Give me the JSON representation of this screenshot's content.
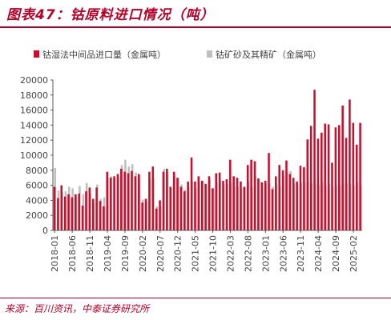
{
  "figure": {
    "title": "图表47：钴原料进口情况（吨）",
    "source": "来源：百川资讯，中泰证券研究所"
  },
  "colors": {
    "accent": "#b5002a",
    "series_main": "#c8102e",
    "series_secondary": "#bfbfbf",
    "axis": "#595959"
  },
  "chart_data": {
    "type": "bar",
    "x": [
      "2018-01",
      "2018-02",
      "2018-03",
      "2018-04",
      "2018-05",
      "2018-06",
      "2018-07",
      "2018-08",
      "2018-09",
      "2018-10",
      "2018-11",
      "2018-12",
      "2019-01",
      "2019-02",
      "2019-03",
      "2019-04",
      "2019-05",
      "2019-06",
      "2019-07",
      "2019-08",
      "2019-09",
      "2019-10",
      "2019-11",
      "2019-12",
      "2020-01",
      "2020-02",
      "2020-03",
      "2020-04",
      "2020-05",
      "2020-06",
      "2020-07",
      "2020-08",
      "2020-09",
      "2020-10",
      "2020-11",
      "2020-12",
      "2021-01",
      "2021-02",
      "2021-03",
      "2021-04",
      "2021-05",
      "2021-06",
      "2021-07",
      "2021-08",
      "2021-09",
      "2021-10",
      "2021-11",
      "2021-12",
      "2022-01",
      "2022-02",
      "2022-03",
      "2022-04",
      "2022-05",
      "2022-06",
      "2022-07",
      "2022-08",
      "2022-09",
      "2022-10",
      "2022-11",
      "2022-12",
      "2023-01",
      "2023-02",
      "2023-03",
      "2023-04",
      "2023-05",
      "2023-06",
      "2023-07",
      "2023-08",
      "2023-09",
      "2023-10",
      "2023-11",
      "2023-12",
      "2024-01",
      "2024-02",
      "2024-03",
      "2024-04",
      "2024-05",
      "2024-06",
      "2024-07",
      "2024-08",
      "2024-09",
      "2024-10",
      "2024-11",
      "2024-12",
      "2025-01",
      "2025-02",
      "2025-03",
      "2025-04"
    ],
    "x_tick_labels": [
      "2018-01",
      "2018-06",
      "2018-11",
      "2019-04",
      "2019-09",
      "2020-02",
      "2020-07",
      "2020-12",
      "2021-05",
      "2021-10",
      "2022-03",
      "2022-08",
      "2023-01",
      "2023-06",
      "2023-11",
      "2024-04",
      "2024-09",
      "2025-02"
    ],
    "series": [
      {
        "name": "钴湿法中间品进口量（金属吨）",
        "values": [
          5800,
          4300,
          6000,
          4500,
          4800,
          4400,
          4800,
          4900,
          3300,
          5200,
          5700,
          4200,
          5700,
          3900,
          3200,
          7800,
          7000,
          7200,
          7500,
          8200,
          7800,
          7600,
          7900,
          7200,
          7500,
          3700,
          4200,
          7800,
          8500,
          2900,
          4000,
          7800,
          8200,
          5800,
          7800,
          7000,
          5800,
          5200,
          6500,
          9700,
          6500,
          7200,
          6600,
          6200,
          7200,
          5600,
          7600,
          7700,
          6600,
          6800,
          9400,
          7200,
          7000,
          6500,
          5800,
          8700,
          9400,
          9200,
          6900,
          6400,
          6600,
          10300,
          5500,
          7200,
          8700,
          8000,
          9300,
          7500,
          7000,
          6500,
          8600,
          8400,
          12100,
          13900,
          18700,
          12200,
          13000,
          14200,
          14100,
          9000,
          13700,
          14000,
          16600,
          12300,
          17400,
          14300,
          11400,
          14300
        ]
      },
      {
        "name": "钴矿砂及其精矿（金属吨）",
        "values": [
          8300,
          5300,
          5100,
          5200,
          5800,
          5600,
          4500,
          5900,
          4800,
          6300,
          4900,
          3600,
          6100,
          4200,
          4400,
          7000,
          7200,
          7100,
          7100,
          8700,
          9400,
          8500,
          8800,
          7700,
          7200,
          4100,
          3800,
          6800,
          7000,
          3200,
          3200,
          8200,
          7800,
          5600,
          7500,
          6900,
          6100,
          5400,
          5800,
          6500,
          5600,
          6300,
          6600,
          6000,
          6800,
          5600,
          6400,
          6700,
          6100,
          6200,
          6300,
          5900,
          5800,
          5600,
          5700,
          6500,
          5800,
          7200,
          6900,
          6300,
          6300,
          6200,
          5800,
          6100,
          5900,
          7200,
          7800,
          7900,
          6200,
          6100,
          6300,
          6400,
          6500,
          6300,
          6200,
          6100,
          6400,
          6000,
          6200,
          5800,
          6000,
          6000,
          6200,
          6300,
          6100,
          6000,
          6400,
          6000
        ]
      }
    ],
    "ylim": [
      0,
      20000
    ],
    "y_ticks": [
      0,
      2000,
      4000,
      6000,
      8000,
      10000,
      12000,
      14000,
      16000,
      18000,
      20000
    ],
    "legend_position": "top",
    "grid": false
  }
}
